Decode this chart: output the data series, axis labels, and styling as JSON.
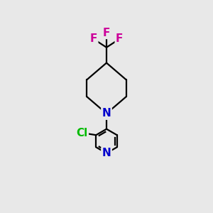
{
  "background_color": "#e8e8e8",
  "bond_color": "#000000",
  "N_pip_color": "#0000cc",
  "N_py_color": "#0000cc",
  "Cl_color": "#00bb00",
  "F_color": "#cc0099",
  "figsize": [
    3.0,
    3.0
  ],
  "dpi": 100,
  "xlim": [
    0,
    7.5
  ],
  "ylim": [
    0,
    7.5
  ],
  "lw": 1.6,
  "fontsize": 11
}
